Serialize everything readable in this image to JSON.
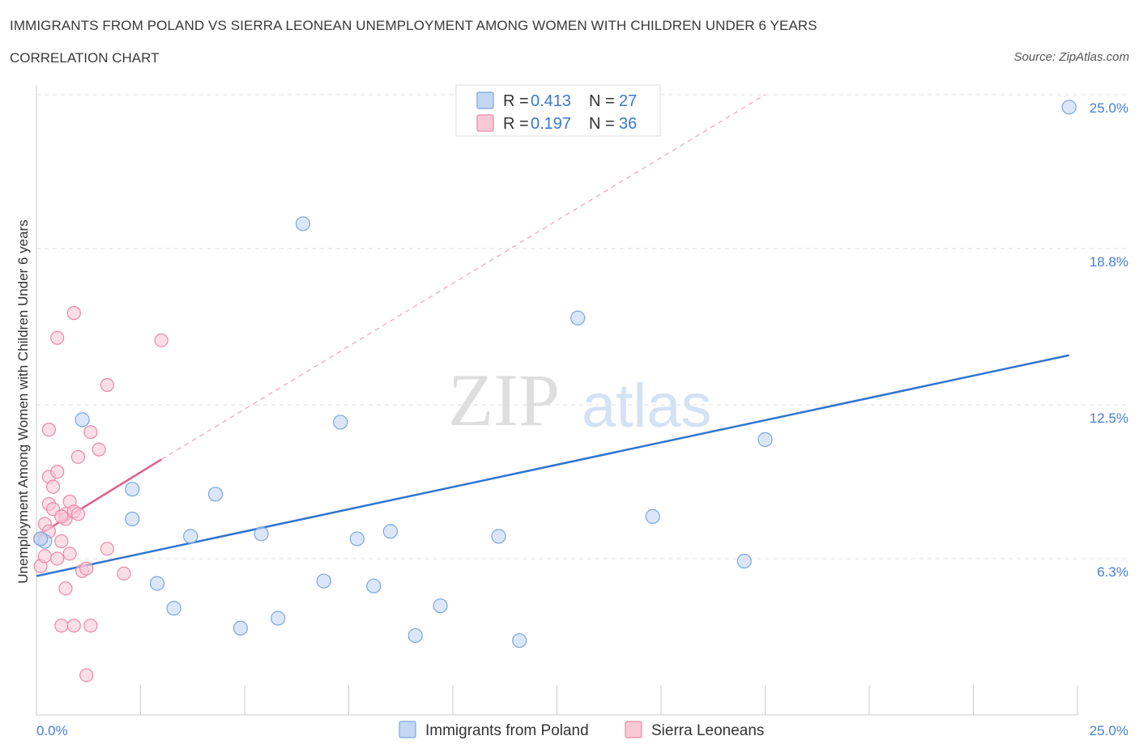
{
  "header": {
    "title": "IMMIGRANTS FROM POLAND VS SIERRA LEONEAN UNEMPLOYMENT AMONG WOMEN WITH CHILDREN UNDER 6 YEARS",
    "subtitle": "CORRELATION CHART",
    "source": "Source: ZipAtlas.com"
  },
  "watermark": {
    "zip": "ZIP",
    "atlas": "atlas"
  },
  "legend": {
    "rows": [
      {
        "r_label": "R = ",
        "r_value": "0.413",
        "n_label": "N = ",
        "n_value": "27"
      },
      {
        "r_label": "R = ",
        "r_value": "0.197",
        "n_label": "N = ",
        "n_value": "36"
      }
    ]
  },
  "colors": {
    "poland_fill": "#c3d7f3",
    "poland_stroke": "#7aa6e0",
    "poland_line": "#2f74d0",
    "sierra_fill": "#f8c8d6",
    "sierra_stroke": "#e98aa7",
    "sierra_line": "#e0608c",
    "grid": "#dddddd",
    "tick_label": "#4a7fd0"
  },
  "chart_data": {
    "type": "scatter",
    "title": "IMMIGRANTS FROM POLAND VS SIERRA LEONEAN UNEMPLOYMENT AMONG WOMEN WITH CHILDREN UNDER 6 YEARS",
    "subtitle": "CORRELATION CHART",
    "xlabel": "",
    "ylabel": "Unemployment Among Women with Children Under 6 years",
    "xlim": [
      0,
      25
    ],
    "ylim": [
      0,
      25
    ],
    "x_tick_labels": [
      "0.0%",
      "25.0%"
    ],
    "y_ticks": [
      6.3,
      12.5,
      18.8,
      25.0
    ],
    "y_tick_labels": [
      "6.3%",
      "12.5%",
      "18.8%",
      "25.0%"
    ],
    "grid": true,
    "legend_position": "bottom",
    "series": [
      {
        "name": "Immigrants from Poland",
        "color": "#7aa6e0",
        "points": [
          [
            0.2,
            7.0
          ],
          [
            1.1,
            11.9
          ],
          [
            2.3,
            9.1
          ],
          [
            2.3,
            7.9
          ],
          [
            2.9,
            5.3
          ],
          [
            3.3,
            4.3
          ],
          [
            3.7,
            7.2
          ],
          [
            4.3,
            8.9
          ],
          [
            4.9,
            3.5
          ],
          [
            5.4,
            7.3
          ],
          [
            5.8,
            3.9
          ],
          [
            6.4,
            19.8
          ],
          [
            6.9,
            5.4
          ],
          [
            7.3,
            11.8
          ],
          [
            7.7,
            7.1
          ],
          [
            8.1,
            5.2
          ],
          [
            8.5,
            7.4
          ],
          [
            9.1,
            3.2
          ],
          [
            9.7,
            4.4
          ],
          [
            11.1,
            7.2
          ],
          [
            11.6,
            3.0
          ],
          [
            13.0,
            16.0
          ],
          [
            14.8,
            8.0
          ],
          [
            17.0,
            6.2
          ],
          [
            17.5,
            11.1
          ],
          [
            24.8,
            24.5
          ],
          [
            0.1,
            7.1
          ]
        ],
        "trend": {
          "x": [
            0,
            24.8
          ],
          "y": [
            5.6,
            14.5
          ]
        }
      },
      {
        "name": "Sierra Leoneans",
        "color": "#e98aa7",
        "points": [
          [
            0.1,
            7.1
          ],
          [
            0.1,
            6.0
          ],
          [
            0.2,
            7.7
          ],
          [
            0.2,
            6.4
          ],
          [
            0.3,
            8.5
          ],
          [
            0.3,
            9.6
          ],
          [
            0.3,
            11.5
          ],
          [
            0.4,
            9.2
          ],
          [
            0.4,
            8.3
          ],
          [
            0.5,
            15.2
          ],
          [
            0.5,
            9.8
          ],
          [
            0.5,
            6.3
          ],
          [
            0.6,
            3.6
          ],
          [
            0.6,
            7.0
          ],
          [
            0.7,
            8.1
          ],
          [
            0.7,
            7.9
          ],
          [
            0.7,
            5.1
          ],
          [
            0.8,
            8.6
          ],
          [
            0.8,
            6.5
          ],
          [
            0.9,
            8.2
          ],
          [
            0.9,
            3.6
          ],
          [
            0.9,
            16.2
          ],
          [
            1.0,
            10.4
          ],
          [
            1.0,
            8.1
          ],
          [
            1.1,
            5.8
          ],
          [
            1.2,
            5.9
          ],
          [
            1.2,
            1.6
          ],
          [
            1.3,
            11.4
          ],
          [
            1.3,
            3.6
          ],
          [
            1.5,
            10.7
          ],
          [
            1.7,
            6.7
          ],
          [
            1.7,
            13.3
          ],
          [
            2.1,
            5.7
          ],
          [
            3.0,
            15.1
          ],
          [
            0.3,
            7.4
          ],
          [
            0.6,
            8.0
          ]
        ],
        "trend": {
          "x": [
            0,
            3.0
          ],
          "y": [
            7.2,
            10.3
          ]
        },
        "trend_extension": {
          "x": [
            3.0,
            17.5
          ],
          "y": [
            10.3,
            25.0
          ]
        }
      }
    ]
  }
}
